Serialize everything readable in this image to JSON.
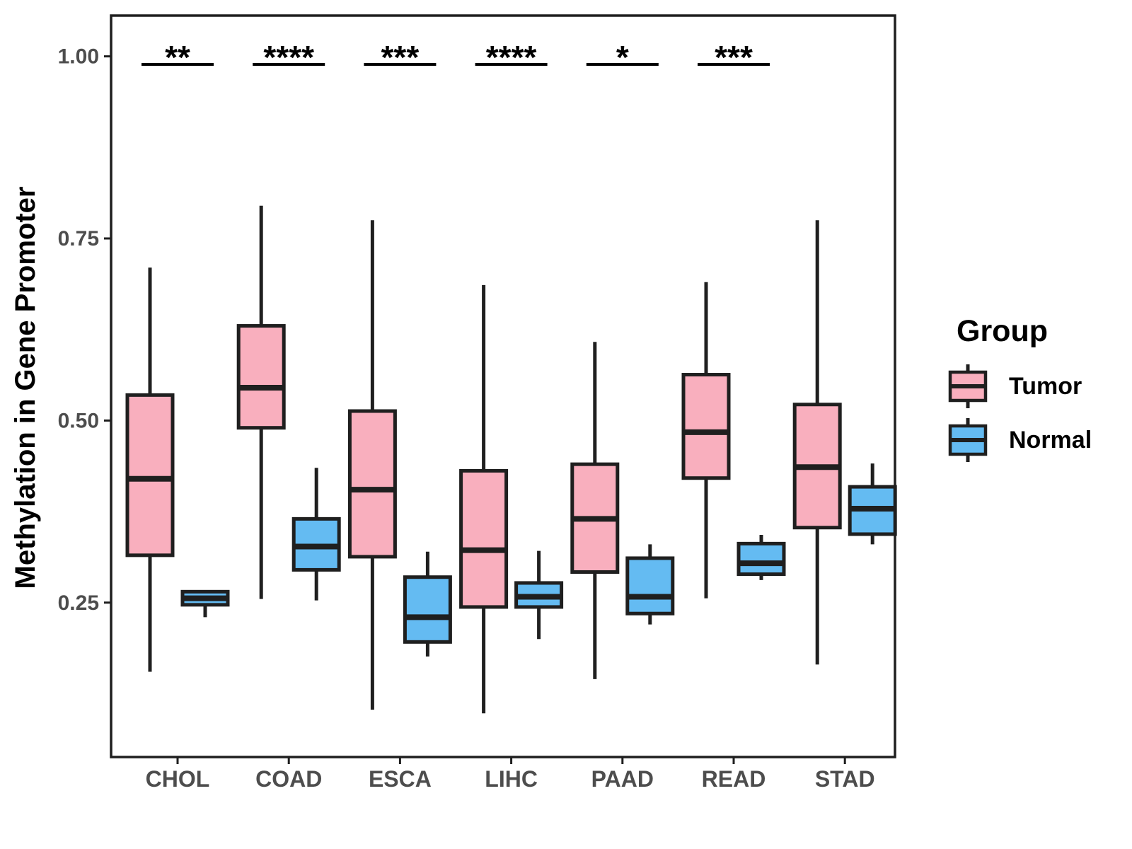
{
  "chart_data": {
    "type": "boxplot",
    "title": "",
    "xlabel": "",
    "ylabel": "Methylation in Gene Promoter",
    "categories": [
      "CHOL",
      "COAD",
      "ESCA",
      "LIHC",
      "PAAD",
      "READ",
      "STAD"
    ],
    "yticks": [
      0.25,
      0.5,
      0.75,
      1.0
    ],
    "ytick_labels": [
      "0.25",
      "0.50",
      "0.75",
      "1.00"
    ],
    "ylim": [
      0.038,
      1.056
    ],
    "grid": false,
    "colors": {
      "tumor": "#F9AFBE",
      "normal": "#64BBF2",
      "stroke": "#1F1F1F",
      "axis_text": "#4D4D4D",
      "title_text": "#000000"
    },
    "legend": {
      "title": "Group",
      "position": "right",
      "items": [
        {
          "label": "Tumor",
          "color": "#F9AFBE"
        },
        {
          "label": "Normal",
          "color": "#64BBF2"
        }
      ]
    },
    "significance": [
      "**",
      "****",
      "***",
      "****",
      "*",
      "***",
      ""
    ],
    "series": [
      {
        "name": "Tumor",
        "color": "#F9AFBE",
        "boxes": [
          {
            "category": "CHOL",
            "min": 0.155,
            "q1": 0.315,
            "median": 0.42,
            "q3": 0.535,
            "max": 0.71
          },
          {
            "category": "COAD",
            "min": 0.255,
            "q1": 0.49,
            "median": 0.545,
            "q3": 0.63,
            "max": 0.795
          },
          {
            "category": "ESCA",
            "min": 0.103,
            "q1": 0.313,
            "median": 0.405,
            "q3": 0.513,
            "max": 0.775
          },
          {
            "category": "LIHC",
            "min": 0.098,
            "q1": 0.244,
            "median": 0.322,
            "q3": 0.431,
            "max": 0.686
          },
          {
            "category": "PAAD",
            "min": 0.145,
            "q1": 0.292,
            "median": 0.365,
            "q3": 0.44,
            "max": 0.608
          },
          {
            "category": "READ",
            "min": 0.256,
            "q1": 0.421,
            "median": 0.484,
            "q3": 0.563,
            "max": 0.69
          },
          {
            "category": "STAD",
            "min": 0.165,
            "q1": 0.353,
            "median": 0.436,
            "q3": 0.522,
            "max": 0.775
          }
        ]
      },
      {
        "name": "Normal",
        "color": "#64BBF2",
        "boxes": [
          {
            "category": "CHOL",
            "min": 0.23,
            "q1": 0.247,
            "median": 0.256,
            "q3": 0.265,
            "max": 0.265
          },
          {
            "category": "COAD",
            "min": 0.253,
            "q1": 0.295,
            "median": 0.327,
            "q3": 0.365,
            "max": 0.435
          },
          {
            "category": "ESCA",
            "min": 0.176,
            "q1": 0.196,
            "median": 0.23,
            "q3": 0.285,
            "max": 0.32
          },
          {
            "category": "LIHC",
            "min": 0.2,
            "q1": 0.244,
            "median": 0.258,
            "q3": 0.277,
            "max": 0.321
          },
          {
            "category": "PAAD",
            "min": 0.22,
            "q1": 0.235,
            "median": 0.258,
            "q3": 0.311,
            "max": 0.33
          },
          {
            "category": "READ",
            "min": 0.281,
            "q1": 0.289,
            "median": 0.304,
            "q3": 0.331,
            "max": 0.343
          },
          {
            "category": "STAD",
            "min": 0.33,
            "q1": 0.344,
            "median": 0.379,
            "q3": 0.409,
            "max": 0.441
          }
        ]
      }
    ]
  }
}
